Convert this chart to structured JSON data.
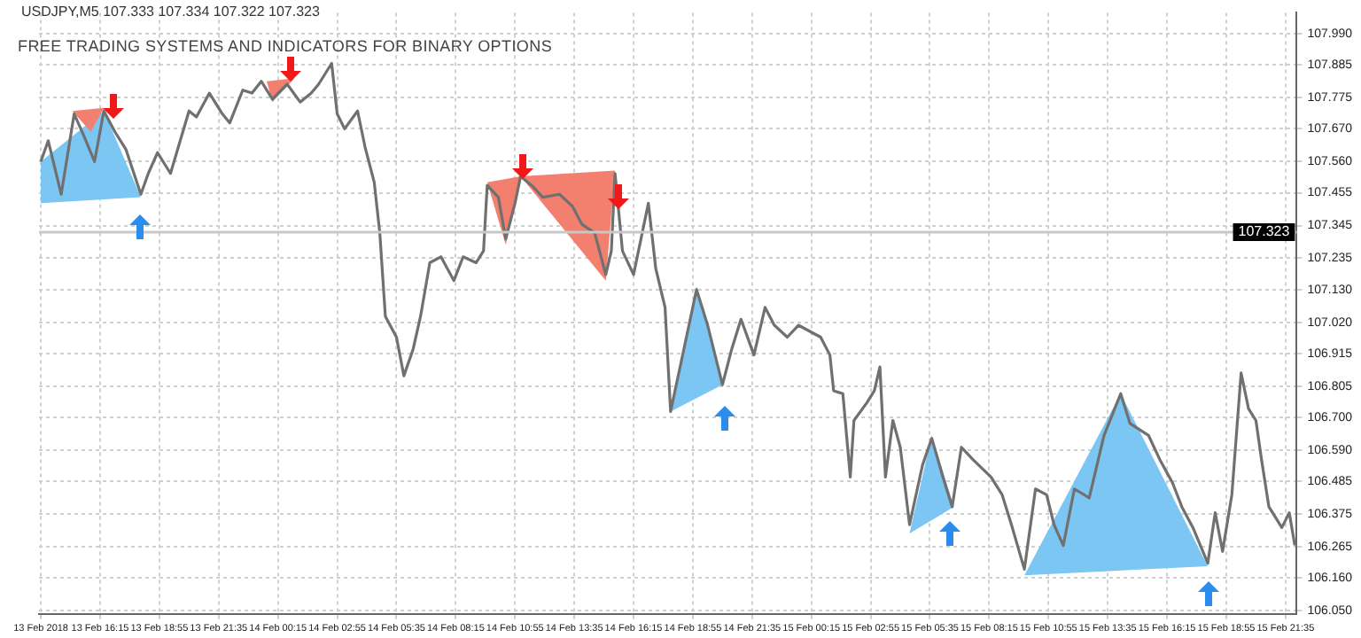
{
  "chart_data": {
    "type": "line",
    "title": "USDJPY,M5  107.333 107.334 107.322 107.323",
    "subtitle": "FREE TRADING SYSTEMS AND INDICATORS FOR BINARY OPTIONS",
    "xlim": [
      "2018-02-13T13:30",
      "2018-02-15T22:05"
    ],
    "xticks": [
      {
        "value": "2018-02-13T13:35",
        "label": "13 Feb 2018"
      },
      {
        "value": "2018-02-13T16:15",
        "label": "13 Feb 16:15"
      },
      {
        "value": "2018-02-13T18:55",
        "label": "13 Feb 18:55"
      },
      {
        "value": "2018-02-13T21:35",
        "label": "13 Feb 21:35"
      },
      {
        "value": "2018-02-14T00:15",
        "label": "14 Feb 00:15"
      },
      {
        "value": "2018-02-14T02:55",
        "label": "14 Feb 02:55"
      },
      {
        "value": "2018-02-14T05:35",
        "label": "14 Feb 05:35"
      },
      {
        "value": "2018-02-14T08:15",
        "label": "14 Feb 08:15"
      },
      {
        "value": "2018-02-14T10:55",
        "label": "14 Feb 10:55"
      },
      {
        "value": "2018-02-14T13:35",
        "label": "14 Feb 13:35"
      },
      {
        "value": "2018-02-14T16:15",
        "label": "14 Feb 16:15"
      },
      {
        "value": "2018-02-14T18:55",
        "label": "14 Feb 18:55"
      },
      {
        "value": "2018-02-14T21:35",
        "label": "14 Feb 21:35"
      },
      {
        "value": "2018-02-15T00:15",
        "label": "15 Feb 00:15"
      },
      {
        "value": "2018-02-15T02:55",
        "label": "15 Feb 02:55"
      },
      {
        "value": "2018-02-15T05:35",
        "label": "15 Feb 05:35"
      },
      {
        "value": "2018-02-15T08:15",
        "label": "15 Feb 08:15"
      },
      {
        "value": "2018-02-15T10:55",
        "label": "15 Feb 10:55"
      },
      {
        "value": "2018-02-15T13:35",
        "label": "15 Feb 13:35"
      },
      {
        "value": "2018-02-15T16:15",
        "label": "15 Feb 16:15"
      },
      {
        "value": "2018-02-15T18:55",
        "label": "15 Feb 18:55"
      },
      {
        "value": "2018-02-15T21:35",
        "label": "15 Feb 21:35"
      }
    ],
    "ylim": [
      106.04,
      108.06
    ],
    "yticks": [
      {
        "value": 107.99,
        "label": "107.990"
      },
      107.885,
      107.775,
      {
        "value": 107.67,
        "label": "107.670"
      },
      {
        "value": 107.56,
        "label": "107.560"
      },
      107.455,
      107.345,
      107.235,
      {
        "value": 107.13,
        "label": "107.130"
      },
      {
        "value": 107.02,
        "label": "107.020"
      },
      106.915,
      106.805,
      {
        "value": 106.7,
        "label": "106.700"
      },
      {
        "value": 106.59,
        "label": "106.590"
      },
      106.485,
      106.375,
      106.265,
      {
        "value": 106.16,
        "label": "106.160"
      },
      {
        "value": 106.05,
        "label": "106.050"
      }
    ],
    "grid": true,
    "legend": false,
    "ref_lines": [
      {
        "axis": "y",
        "value": 107.323,
        "label": "107.323",
        "color": "#c8c8c8"
      }
    ],
    "series": [
      {
        "type": "area",
        "color": "#7cc6f4",
        "x": [
          "2018-02-13T13:35",
          "2018-02-13T16:25",
          "2018-02-13T18:05",
          "2018-02-13T13:35"
        ],
        "values": [
          107.56,
          107.73,
          107.44,
          107.42
        ]
      },
      {
        "type": "area",
        "color": "#f3806f",
        "x": [
          "2018-02-13T15:00",
          "2018-02-13T16:25",
          "2018-02-13T15:50"
        ],
        "values": [
          107.73,
          107.74,
          107.66
        ]
      },
      {
        "type": "area",
        "color": "#f3806f",
        "x": [
          "2018-02-13T23:45",
          "2018-02-14T01:00",
          "2018-02-14T00:00"
        ],
        "values": [
          107.83,
          107.84,
          107.76
        ]
      },
      {
        "type": "area",
        "color": "#f3806f",
        "x": [
          "2018-02-14T09:40",
          "2018-02-14T11:10",
          "2018-02-14T10:30"
        ],
        "values": [
          107.49,
          107.51,
          107.28
        ]
      },
      {
        "type": "area",
        "color": "#f3806f",
        "x": [
          "2018-02-14T11:10",
          "2018-02-14T15:25",
          "2018-02-14T15:00"
        ],
        "values": [
          107.51,
          107.53,
          107.16
        ]
      },
      {
        "type": "area",
        "color": "#7cc6f4",
        "x": [
          "2018-02-14T17:55",
          "2018-02-14T19:05",
          "2018-02-14T20:15"
        ],
        "values": [
          106.72,
          107.14,
          106.81
        ]
      },
      {
        "type": "area",
        "color": "#7cc6f4",
        "x": [
          "2018-02-15T04:40",
          "2018-02-15T05:40",
          "2018-02-15T06:40"
        ],
        "values": [
          106.31,
          106.64,
          106.4
        ]
      },
      {
        "type": "area",
        "color": "#7cc6f4",
        "x": [
          "2018-02-15T09:50",
          "2018-02-15T14:10",
          "2018-02-15T18:05"
        ],
        "values": [
          106.17,
          106.78,
          106.2
        ]
      },
      {
        "type": "line",
        "color": "#707070",
        "x": [
          "2018-02-13T13:35",
          "2018-02-13T13:55",
          "2018-02-13T14:30",
          "2018-02-13T15:05",
          "2018-02-13T15:30",
          "2018-02-13T16:00",
          "2018-02-13T16:25",
          "2018-02-13T16:55",
          "2018-02-13T17:25",
          "2018-02-13T18:05",
          "2018-02-13T18:25",
          "2018-02-13T18:50",
          "2018-02-13T19:25",
          "2018-02-13T20:15",
          "2018-02-13T20:35",
          "2018-02-13T21:10",
          "2018-02-13T21:45",
          "2018-02-13T22:05",
          "2018-02-13T22:40",
          "2018-02-13T23:05",
          "2018-02-13T23:30",
          "2018-02-14T00:00",
          "2018-02-14T00:40",
          "2018-02-14T01:15",
          "2018-02-14T01:45",
          "2018-02-14T02:05",
          "2018-02-14T02:40",
          "2018-02-14T02:55",
          "2018-02-14T03:15",
          "2018-02-14T03:50",
          "2018-02-14T04:10",
          "2018-02-14T04:35",
          "2018-02-14T04:50",
          "2018-02-14T05:05",
          "2018-02-14T05:35",
          "2018-02-14T05:55",
          "2018-02-14T06:20",
          "2018-02-14T06:40",
          "2018-02-14T07:05",
          "2018-02-14T07:35",
          "2018-02-14T08:10",
          "2018-02-14T08:35",
          "2018-02-14T09:10",
          "2018-02-14T09:30",
          "2018-02-14T09:40",
          "2018-02-14T10:10",
          "2018-02-14T10:30",
          "2018-02-14T10:55",
          "2018-02-14T11:10",
          "2018-02-14T11:40",
          "2018-02-14T12:10",
          "2018-02-14T12:55",
          "2018-02-14T13:30",
          "2018-02-14T13:55",
          "2018-02-14T14:30",
          "2018-02-14T15:00",
          "2018-02-14T15:15",
          "2018-02-14T15:25",
          "2018-02-14T15:45",
          "2018-02-14T16:15",
          "2018-02-14T16:55",
          "2018-02-14T17:15",
          "2018-02-14T17:40",
          "2018-02-14T17:55",
          "2018-02-14T19:05",
          "2018-02-14T19:35",
          "2018-02-14T20:15",
          "2018-02-14T20:40",
          "2018-02-14T21:05",
          "2018-02-14T21:40",
          "2018-02-14T22:10",
          "2018-02-14T22:35",
          "2018-02-14T23:10",
          "2018-02-14T23:40",
          "2018-02-15T00:10",
          "2018-02-15T00:40",
          "2018-02-15T01:05",
          "2018-02-15T01:15",
          "2018-02-15T01:40",
          "2018-02-15T02:00",
          "2018-02-15T02:10",
          "2018-02-15T02:45",
          "2018-02-15T03:05",
          "2018-02-15T03:20",
          "2018-02-15T03:35",
          "2018-02-15T03:55",
          "2018-02-15T04:15",
          "2018-02-15T04:40",
          "2018-02-15T05:15",
          "2018-02-15T05:40",
          "2018-02-15T06:10",
          "2018-02-15T06:35",
          "2018-02-15T07:00",
          "2018-02-15T07:30",
          "2018-02-15T08:20",
          "2018-02-15T08:50",
          "2018-02-15T09:15",
          "2018-02-15T09:50",
          "2018-02-15T10:20",
          "2018-02-15T10:50",
          "2018-02-15T11:10",
          "2018-02-15T11:35",
          "2018-02-15T12:05",
          "2018-02-15T12:45",
          "2018-02-15T13:25",
          "2018-02-15T14:10",
          "2018-02-15T14:35",
          "2018-02-15T15:25",
          "2018-02-15T15:55",
          "2018-02-15T16:30",
          "2018-02-15T16:55",
          "2018-02-15T17:25",
          "2018-02-15T18:05",
          "2018-02-15T18:25",
          "2018-02-15T18:45",
          "2018-02-15T19:10",
          "2018-02-15T19:35",
          "2018-02-15T19:55",
          "2018-02-15T20:15",
          "2018-02-15T20:30",
          "2018-02-15T20:50",
          "2018-02-15T21:25",
          "2018-02-15T21:45",
          "2018-02-15T22:00"
        ],
        "values": [
          107.56,
          107.63,
          107.45,
          107.72,
          107.65,
          107.56,
          107.73,
          107.66,
          107.6,
          107.45,
          107.52,
          107.59,
          107.52,
          107.73,
          107.71,
          107.79,
          107.72,
          107.69,
          107.8,
          107.79,
          107.83,
          107.77,
          107.82,
          107.76,
          107.79,
          107.82,
          107.89,
          107.72,
          107.67,
          107.73,
          107.61,
          107.49,
          107.32,
          107.04,
          106.97,
          106.84,
          106.93,
          107.04,
          107.22,
          107.24,
          107.16,
          107.24,
          107.22,
          107.26,
          107.48,
          107.44,
          107.3,
          107.42,
          107.51,
          107.48,
          107.44,
          107.45,
          107.41,
          107.35,
          107.32,
          107.18,
          107.26,
          107.52,
          107.26,
          107.18,
          107.42,
          107.2,
          107.07,
          106.72,
          107.13,
          107.01,
          106.81,
          106.93,
          107.03,
          106.91,
          107.07,
          107.01,
          106.97,
          107.01,
          106.99,
          106.97,
          106.91,
          106.79,
          106.78,
          106.5,
          106.69,
          106.75,
          106.79,
          106.87,
          106.5,
          106.69,
          106.6,
          106.34,
          106.54,
          106.63,
          106.5,
          106.4,
          106.6,
          106.56,
          106.5,
          106.44,
          106.34,
          106.19,
          106.46,
          106.44,
          106.34,
          106.27,
          106.46,
          106.43,
          106.64,
          106.78,
          106.68,
          106.64,
          106.56,
          106.48,
          106.4,
          106.33,
          106.21,
          106.38,
          106.25,
          106.44,
          106.85,
          106.73,
          106.69,
          106.56,
          106.4,
          106.33,
          106.38,
          106.27
        ]
      }
    ]
  }
}
